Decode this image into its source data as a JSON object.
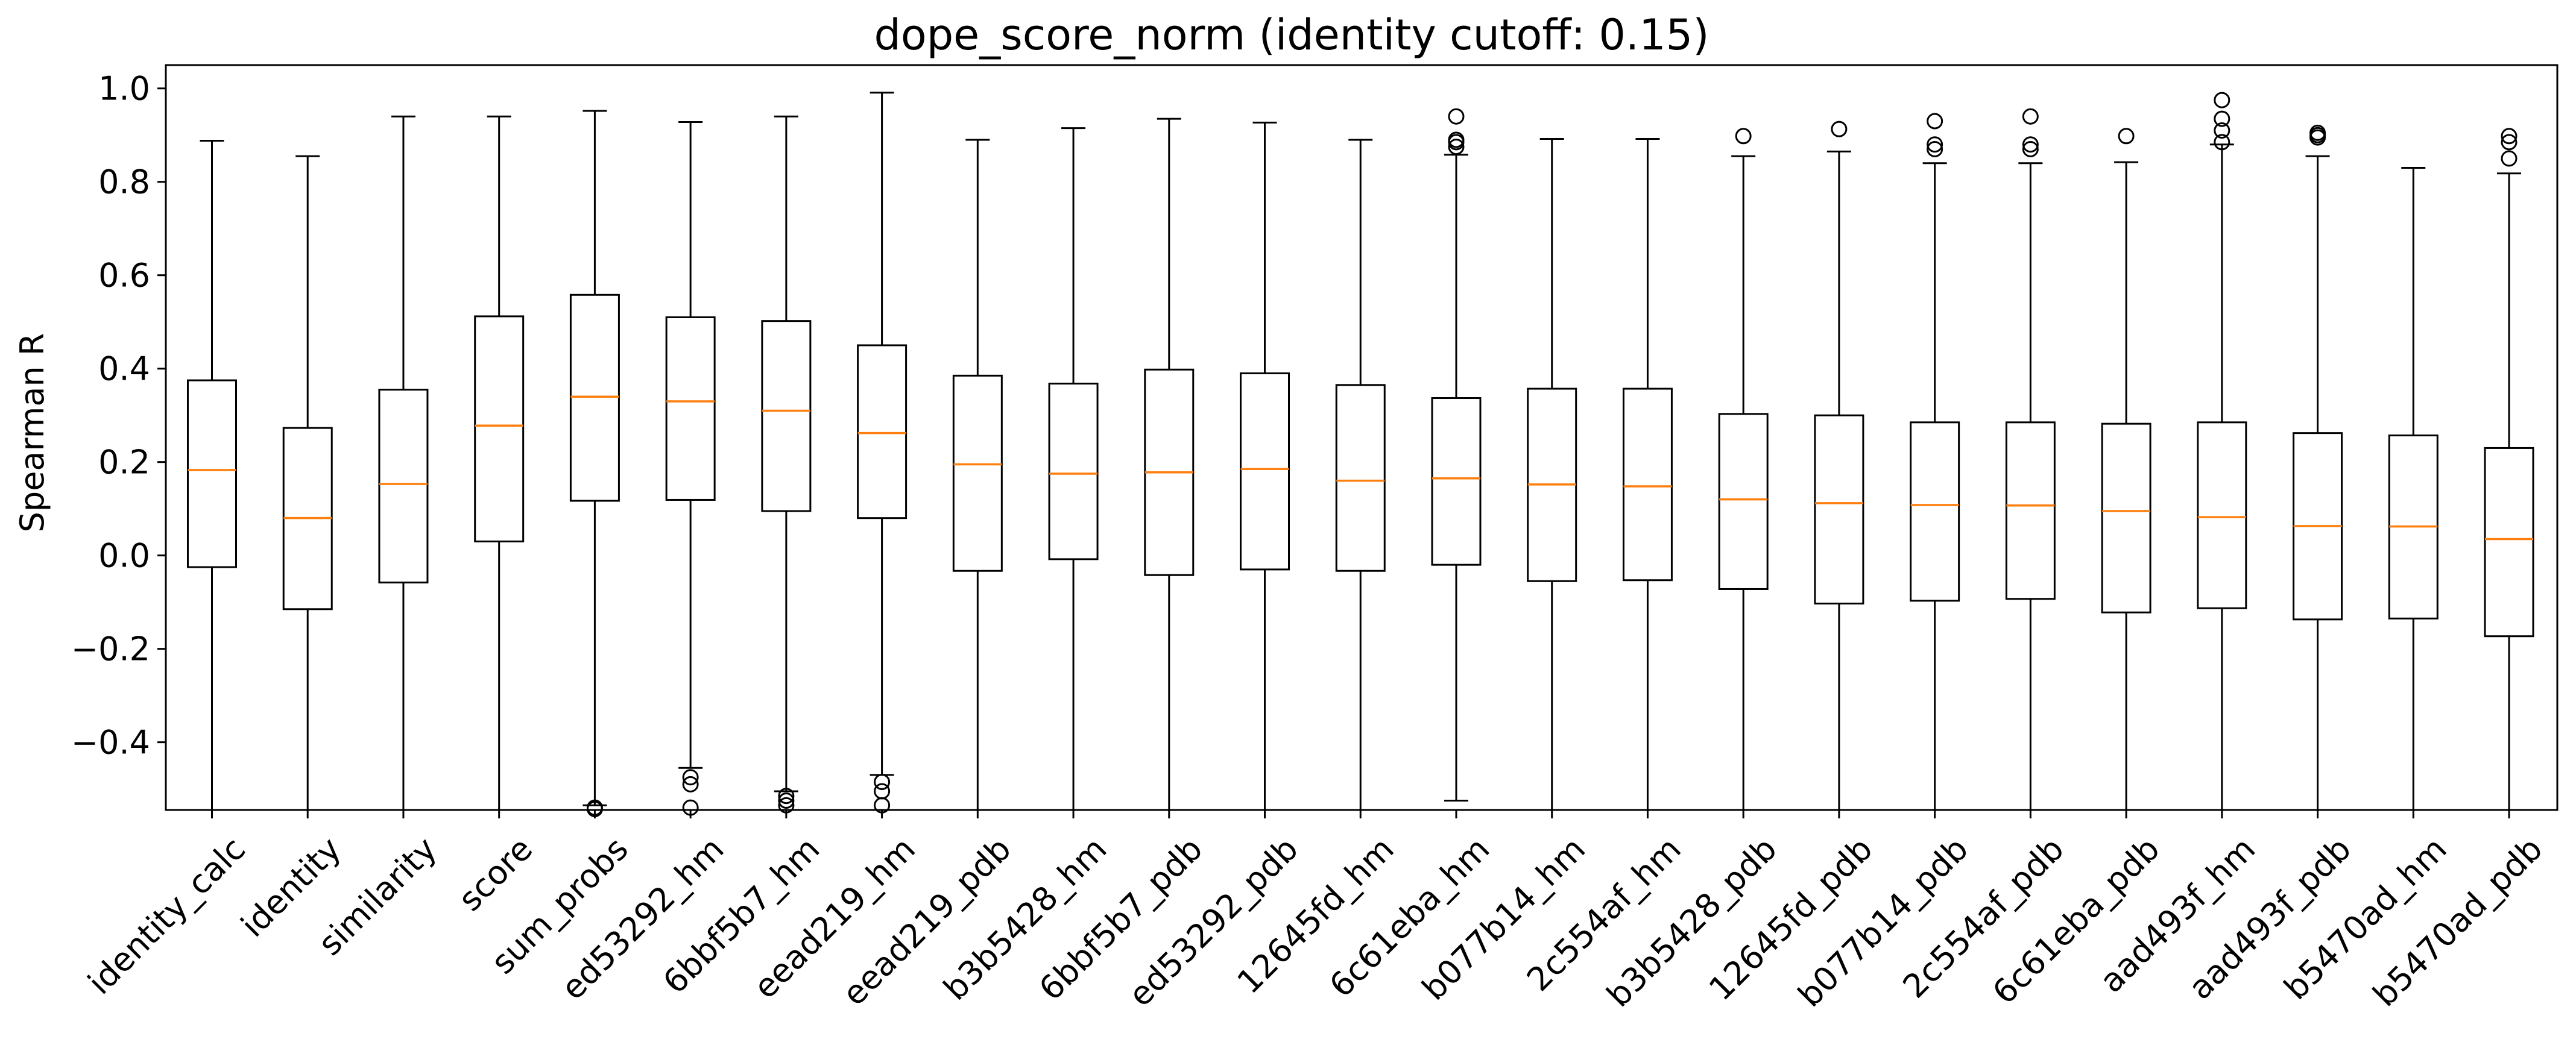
{
  "chart_data": {
    "type": "box",
    "title": "dope_score_norm (identity cutoff: 0.15)",
    "xlabel": "",
    "ylabel": "Spearman R",
    "ylim": [
      -0.545,
      1.05
    ],
    "yticks": [
      -0.4,
      -0.2,
      0.0,
      0.2,
      0.4,
      0.6,
      0.8,
      1.0
    ],
    "ytick_labels": [
      "−0.4",
      "−0.2",
      "0.0",
      "0.2",
      "0.4",
      "0.6",
      "0.8",
      "1.0"
    ],
    "grid": false,
    "median_color": "#ff7f0e",
    "box_color": "#000000",
    "categories": [
      "identity_calc",
      "identity",
      "similarity",
      "score",
      "sum_probs",
      "ed53292_hm",
      "6bbf5b7_hm",
      "eead219_hm",
      "eead219_pdb",
      "b3b5428_hm",
      "6bbf5b7_pdb",
      "ed53292_pdb",
      "12645fd_hm",
      "6c61eba_hm",
      "b077b14_hm",
      "2c554af_hm",
      "b3b5428_pdb",
      "12645fd_pdb",
      "b077b14_pdb",
      "2c554af_pdb",
      "6c61eba_pdb",
      "aad493f_hm",
      "aad493f_pdb",
      "b5470ad_hm",
      "b5470ad_pdb"
    ],
    "boxes": [
      {
        "whislo": -0.545,
        "q1": -0.025,
        "med": 0.183,
        "q3": 0.375,
        "whishi": 0.888,
        "fliers": []
      },
      {
        "whislo": -0.545,
        "q1": -0.115,
        "med": 0.08,
        "q3": 0.273,
        "whishi": 0.855,
        "fliers": []
      },
      {
        "whislo": -0.545,
        "q1": -0.058,
        "med": 0.153,
        "q3": 0.355,
        "whishi": 0.94,
        "fliers": []
      },
      {
        "whislo": -0.545,
        "q1": 0.03,
        "med": 0.278,
        "q3": 0.512,
        "whishi": 0.94,
        "fliers": []
      },
      {
        "whislo": -0.535,
        "q1": 0.117,
        "med": 0.34,
        "q3": 0.558,
        "whishi": 0.952,
        "fliers": [
          -0.54,
          -0.543
        ]
      },
      {
        "whislo": -0.455,
        "q1": 0.119,
        "med": 0.33,
        "q3": 0.51,
        "whishi": 0.928,
        "fliers": [
          -0.475,
          -0.49,
          -0.54
        ]
      },
      {
        "whislo": -0.505,
        "q1": 0.095,
        "med": 0.31,
        "q3": 0.502,
        "whishi": 0.94,
        "fliers": [
          -0.515,
          -0.525,
          -0.535
        ]
      },
      {
        "whislo": -0.47,
        "q1": 0.08,
        "med": 0.262,
        "q3": 0.45,
        "whishi": 0.991,
        "fliers": [
          -0.485,
          -0.505,
          -0.535
        ]
      },
      {
        "whislo": -0.545,
        "q1": -0.033,
        "med": 0.195,
        "q3": 0.385,
        "whishi": 0.89,
        "fliers": []
      },
      {
        "whislo": -0.545,
        "q1": -0.008,
        "med": 0.175,
        "q3": 0.368,
        "whishi": 0.915,
        "fliers": []
      },
      {
        "whislo": -0.545,
        "q1": -0.042,
        "med": 0.178,
        "q3": 0.398,
        "whishi": 0.935,
        "fliers": []
      },
      {
        "whislo": -0.545,
        "q1": -0.03,
        "med": 0.185,
        "q3": 0.39,
        "whishi": 0.927,
        "fliers": []
      },
      {
        "whislo": -0.545,
        "q1": -0.033,
        "med": 0.16,
        "q3": 0.365,
        "whishi": 0.89,
        "fliers": []
      },
      {
        "whislo": -0.525,
        "q1": -0.02,
        "med": 0.165,
        "q3": 0.337,
        "whishi": 0.858,
        "fliers": [
          0.875,
          0.885,
          0.89,
          0.94
        ]
      },
      {
        "whislo": -0.545,
        "q1": -0.055,
        "med": 0.152,
        "q3": 0.357,
        "whishi": 0.892,
        "fliers": []
      },
      {
        "whislo": -0.545,
        "q1": -0.053,
        "med": 0.148,
        "q3": 0.357,
        "whishi": 0.892,
        "fliers": []
      },
      {
        "whislo": -0.545,
        "q1": -0.072,
        "med": 0.12,
        "q3": 0.303,
        "whishi": 0.855,
        "fliers": [
          0.898
        ]
      },
      {
        "whislo": -0.545,
        "q1": -0.103,
        "med": 0.112,
        "q3": 0.3,
        "whishi": 0.865,
        "fliers": [
          0.913
        ]
      },
      {
        "whislo": -0.545,
        "q1": -0.097,
        "med": 0.108,
        "q3": 0.285,
        "whishi": 0.84,
        "fliers": [
          0.87,
          0.88,
          0.93
        ]
      },
      {
        "whislo": -0.545,
        "q1": -0.093,
        "med": 0.107,
        "q3": 0.285,
        "whishi": 0.84,
        "fliers": [
          0.87,
          0.88,
          0.94
        ]
      },
      {
        "whislo": -0.545,
        "q1": -0.122,
        "med": 0.095,
        "q3": 0.282,
        "whishi": 0.842,
        "fliers": [
          0.898
        ]
      },
      {
        "whislo": -0.545,
        "q1": -0.113,
        "med": 0.082,
        "q3": 0.285,
        "whishi": 0.88,
        "fliers": [
          0.885,
          0.91,
          0.935,
          0.975
        ]
      },
      {
        "whislo": -0.545,
        "q1": -0.137,
        "med": 0.063,
        "q3": 0.262,
        "whishi": 0.855,
        "fliers": [
          0.895,
          0.9,
          0.905
        ]
      },
      {
        "whislo": -0.545,
        "q1": -0.135,
        "med": 0.062,
        "q3": 0.257,
        "whishi": 0.83,
        "fliers": []
      },
      {
        "whislo": -0.545,
        "q1": -0.173,
        "med": 0.035,
        "q3": 0.23,
        "whishi": 0.818,
        "fliers": [
          0.85,
          0.885,
          0.898
        ]
      }
    ]
  }
}
